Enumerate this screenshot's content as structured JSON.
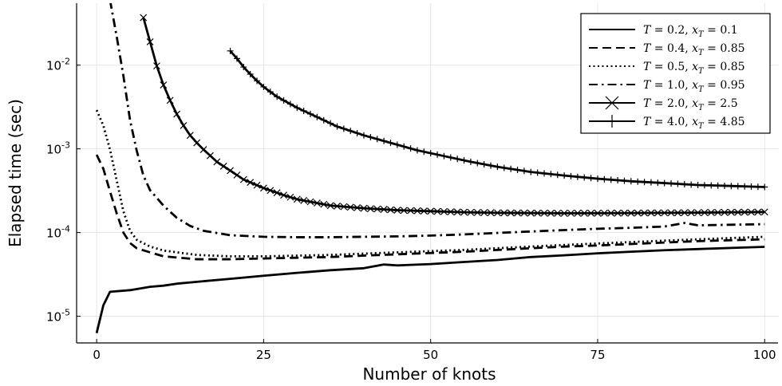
{
  "chart_data": {
    "type": "line",
    "xlabel": "Number of knots",
    "ylabel": "Elapsed time (sec)",
    "xlim": [
      -3,
      102
    ],
    "ylim": [
      4.8e-06,
      0.055
    ],
    "yscale": "log",
    "grid": true,
    "legend_position": "top-right",
    "x_ticks": [
      {
        "value": 0,
        "label": "0"
      },
      {
        "value": 25,
        "label": "25"
      },
      {
        "value": 50,
        "label": "50"
      },
      {
        "value": 75,
        "label": "75"
      },
      {
        "value": 100,
        "label": "100"
      }
    ],
    "y_ticks": [
      {
        "value": 1e-05,
        "base": "10",
        "exp": "-5"
      },
      {
        "value": 0.0001,
        "base": "10",
        "exp": "-4"
      },
      {
        "value": 0.001,
        "base": "10",
        "exp": "-3"
      },
      {
        "value": 0.01,
        "base": "10",
        "exp": "-2"
      }
    ],
    "series": [
      {
        "name": "T = 0.2, x_T = 0.1",
        "label_parts": {
          "t": "T",
          "t_val": " = 0.2, ",
          "x": "x",
          "sub": "T",
          "x_val": " = 0.1"
        },
        "style": "solid",
        "marker": "none",
        "points": [
          [
            0,
            6.3e-06
          ],
          [
            1,
            1.35e-05
          ],
          [
            2,
            1.96e-05
          ],
          [
            5,
            2.05e-05
          ],
          [
            8,
            2.25e-05
          ],
          [
            10,
            2.32e-05
          ],
          [
            12,
            2.45e-05
          ],
          [
            15,
            2.58e-05
          ],
          [
            20,
            2.8e-05
          ],
          [
            25,
            3.05e-05
          ],
          [
            30,
            3.3e-05
          ],
          [
            35,
            3.55e-05
          ],
          [
            40,
            3.75e-05
          ],
          [
            43,
            4.15e-05
          ],
          [
            45,
            4.05e-05
          ],
          [
            50,
            4.2e-05
          ],
          [
            55,
            4.45e-05
          ],
          [
            60,
            4.7e-05
          ],
          [
            65,
            5.1e-05
          ],
          [
            70,
            5.35e-05
          ],
          [
            75,
            5.65e-05
          ],
          [
            80,
            5.9e-05
          ],
          [
            85,
            6.15e-05
          ],
          [
            90,
            6.35e-05
          ],
          [
            95,
            6.55e-05
          ],
          [
            100,
            6.75e-05
          ]
        ]
      },
      {
        "name": "T = 0.4, x_T = 0.85",
        "label_parts": {
          "t": "T",
          "t_val": " = 0.4, ",
          "x": "x",
          "sub": "T",
          "x_val": " = 0.85"
        },
        "style": "dashed",
        "marker": "none",
        "points": [
          [
            0,
            0.00085
          ],
          [
            1,
            0.00058
          ],
          [
            2,
            0.00031
          ],
          [
            3,
            0.00017
          ],
          [
            4,
            0.0001
          ],
          [
            5,
            7.5e-05
          ],
          [
            6,
            6.5e-05
          ],
          [
            8,
            5.8e-05
          ],
          [
            10,
            5.2e-05
          ],
          [
            15,
            4.8e-05
          ],
          [
            20,
            4.8e-05
          ],
          [
            25,
            4.9e-05
          ],
          [
            30,
            5e-05
          ],
          [
            35,
            5.1e-05
          ],
          [
            40,
            5.3e-05
          ],
          [
            45,
            5.5e-05
          ],
          [
            50,
            5.7e-05
          ],
          [
            55,
            5.9e-05
          ],
          [
            60,
            6.2e-05
          ],
          [
            65,
            6.5e-05
          ],
          [
            70,
            6.8e-05
          ],
          [
            75,
            7e-05
          ],
          [
            80,
            7.3e-05
          ],
          [
            85,
            7.6e-05
          ],
          [
            90,
            7.9e-05
          ],
          [
            95,
            8.1e-05
          ],
          [
            100,
            8.3e-05
          ]
        ]
      },
      {
        "name": "T = 0.5, x_T = 0.85",
        "label_parts": {
          "t": "T",
          "t_val": " = 0.5, ",
          "x": "x",
          "sub": "T",
          "x_val": " = 0.85"
        },
        "style": "dotted",
        "marker": "none",
        "points": [
          [
            0,
            0.0029
          ],
          [
            1,
            0.0019
          ],
          [
            2,
            0.00098
          ],
          [
            3,
            0.00042
          ],
          [
            4,
            0.00018
          ],
          [
            5,
            0.000105
          ],
          [
            6,
            8.2e-05
          ],
          [
            8,
            6.8e-05
          ],
          [
            10,
            6.1e-05
          ],
          [
            15,
            5.4e-05
          ],
          [
            20,
            5.2e-05
          ],
          [
            25,
            5.2e-05
          ],
          [
            30,
            5.3e-05
          ],
          [
            35,
            5.4e-05
          ],
          [
            40,
            5.6e-05
          ],
          [
            45,
            5.8e-05
          ],
          [
            50,
            6e-05
          ],
          [
            55,
            6.2e-05
          ],
          [
            60,
            6.5e-05
          ],
          [
            65,
            6.8e-05
          ],
          [
            70,
            7.1e-05
          ],
          [
            75,
            7.4e-05
          ],
          [
            80,
            7.7e-05
          ],
          [
            85,
            8e-05
          ],
          [
            90,
            8.3e-05
          ],
          [
            95,
            8.6e-05
          ],
          [
            100,
            8.9e-05
          ]
        ]
      },
      {
        "name": "T = 1.0, x_T = 0.95",
        "label_parts": {
          "t": "T",
          "t_val": " = 1.0, ",
          "x": "x",
          "sub": "T",
          "x_val": " = 0.95"
        },
        "style": "dashdot",
        "marker": "none",
        "points": [
          [
            2,
            0.06
          ],
          [
            3,
            0.022
          ],
          [
            4,
            0.0075
          ],
          [
            5,
            0.0022
          ],
          [
            6,
            0.00095
          ],
          [
            7,
            0.00048
          ],
          [
            8,
            0.00032
          ],
          [
            9,
            0.00026
          ],
          [
            10,
            0.00021
          ],
          [
            12,
            0.00015
          ],
          [
            14,
            0.00012
          ],
          [
            16,
            0.000105
          ],
          [
            20,
            9.3e-05
          ],
          [
            25,
            8.9e-05
          ],
          [
            30,
            8.8e-05
          ],
          [
            35,
            8.8e-05
          ],
          [
            40,
            8.9e-05
          ],
          [
            45,
            9e-05
          ],
          [
            50,
            9.2e-05
          ],
          [
            55,
            9.5e-05
          ],
          [
            60,
            9.9e-05
          ],
          [
            65,
            0.000103
          ],
          [
            70,
            0.000107
          ],
          [
            75,
            0.000111
          ],
          [
            80,
            0.000114
          ],
          [
            85,
            0.000118
          ],
          [
            88,
            0.00013
          ],
          [
            90,
            0.000122
          ],
          [
            95,
            0.000124
          ],
          [
            100,
            0.000126
          ]
        ]
      },
      {
        "name": "T = 2.0, x_T = 2.5",
        "label_parts": {
          "t": "T",
          "t_val": " = 2.0, ",
          "x": "x",
          "sub": "T",
          "x_val": " = 2.5"
        },
        "style": "solid",
        "marker": "x",
        "points": [
          [
            7,
            0.037
          ],
          [
            8,
            0.019
          ],
          [
            9,
            0.0098
          ],
          [
            10,
            0.0058
          ],
          [
            11,
            0.0038
          ],
          [
            12,
            0.0026
          ],
          [
            13,
            0.0019
          ],
          [
            14,
            0.00145
          ],
          [
            15,
            0.00118
          ],
          [
            16,
            0.00098
          ],
          [
            17,
            0.00083
          ],
          [
            18,
            0.0007
          ],
          [
            20,
            0.00055
          ],
          [
            22,
            0.00043
          ],
          [
            25,
            0.00034
          ],
          [
            28,
            0.00028
          ],
          [
            30,
            0.00025
          ],
          [
            35,
            0.00021
          ],
          [
            40,
            0.000195
          ],
          [
            45,
            0.000185
          ],
          [
            50,
            0.00018
          ],
          [
            55,
            0.000175
          ],
          [
            60,
            0.000172
          ],
          [
            70,
            0.00017
          ],
          [
            80,
            0.000171
          ],
          [
            90,
            0.000173
          ],
          [
            100,
            0.000176
          ]
        ]
      },
      {
        "name": "T = 4.0, x_T = 4.85",
        "label_parts": {
          "t": "T",
          "t_val": " = 4.0, ",
          "x": "x",
          "sub": "T",
          "x_val": " = 4.85"
        },
        "style": "solid",
        "marker": "plus",
        "points": [
          [
            20,
            0.0148
          ],
          [
            21,
            0.012
          ],
          [
            22,
            0.0095
          ],
          [
            23,
            0.0078
          ],
          [
            24,
            0.0065
          ],
          [
            25,
            0.0055
          ],
          [
            27,
            0.0042
          ],
          [
            30,
            0.0031
          ],
          [
            33,
            0.0024
          ],
          [
            36,
            0.00185
          ],
          [
            40,
            0.00145
          ],
          [
            44,
            0.00118
          ],
          [
            48,
            0.00096
          ],
          [
            52,
            0.00082
          ],
          [
            56,
            0.0007
          ],
          [
            60,
            0.00061
          ],
          [
            65,
            0.00053
          ],
          [
            70,
            0.00048
          ],
          [
            75,
            0.00044
          ],
          [
            80,
            0.00041
          ],
          [
            85,
            0.00039
          ],
          [
            90,
            0.00037
          ],
          [
            95,
            0.00036
          ],
          [
            100,
            0.00035
          ]
        ]
      }
    ]
  }
}
